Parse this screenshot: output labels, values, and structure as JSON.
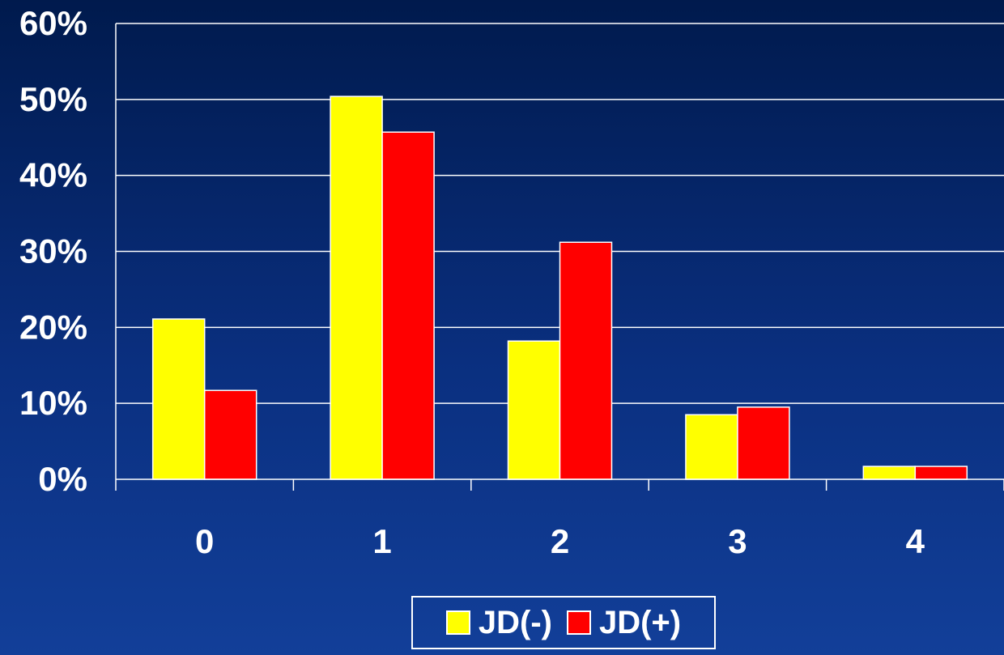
{
  "chart_data": {
    "type": "bar",
    "categories": [
      "0",
      "1",
      "2",
      "3",
      "4"
    ],
    "series": [
      {
        "name": "JD(-)",
        "values": [
          21.1,
          50.4,
          18.2,
          8.5,
          1.7
        ],
        "color": "#ffff00"
      },
      {
        "name": "JD(+)",
        "values": [
          11.7,
          45.7,
          31.2,
          9.5,
          1.7
        ],
        "color": "#ff0000"
      }
    ],
    "y_ticks": [
      "0%",
      "10%",
      "20%",
      "30%",
      "40%",
      "50%",
      "60%"
    ],
    "ylim": [
      0,
      60
    ],
    "grid": true,
    "legend": "bottom-center",
    "title": "",
    "xlabel": "",
    "ylabel": ""
  }
}
